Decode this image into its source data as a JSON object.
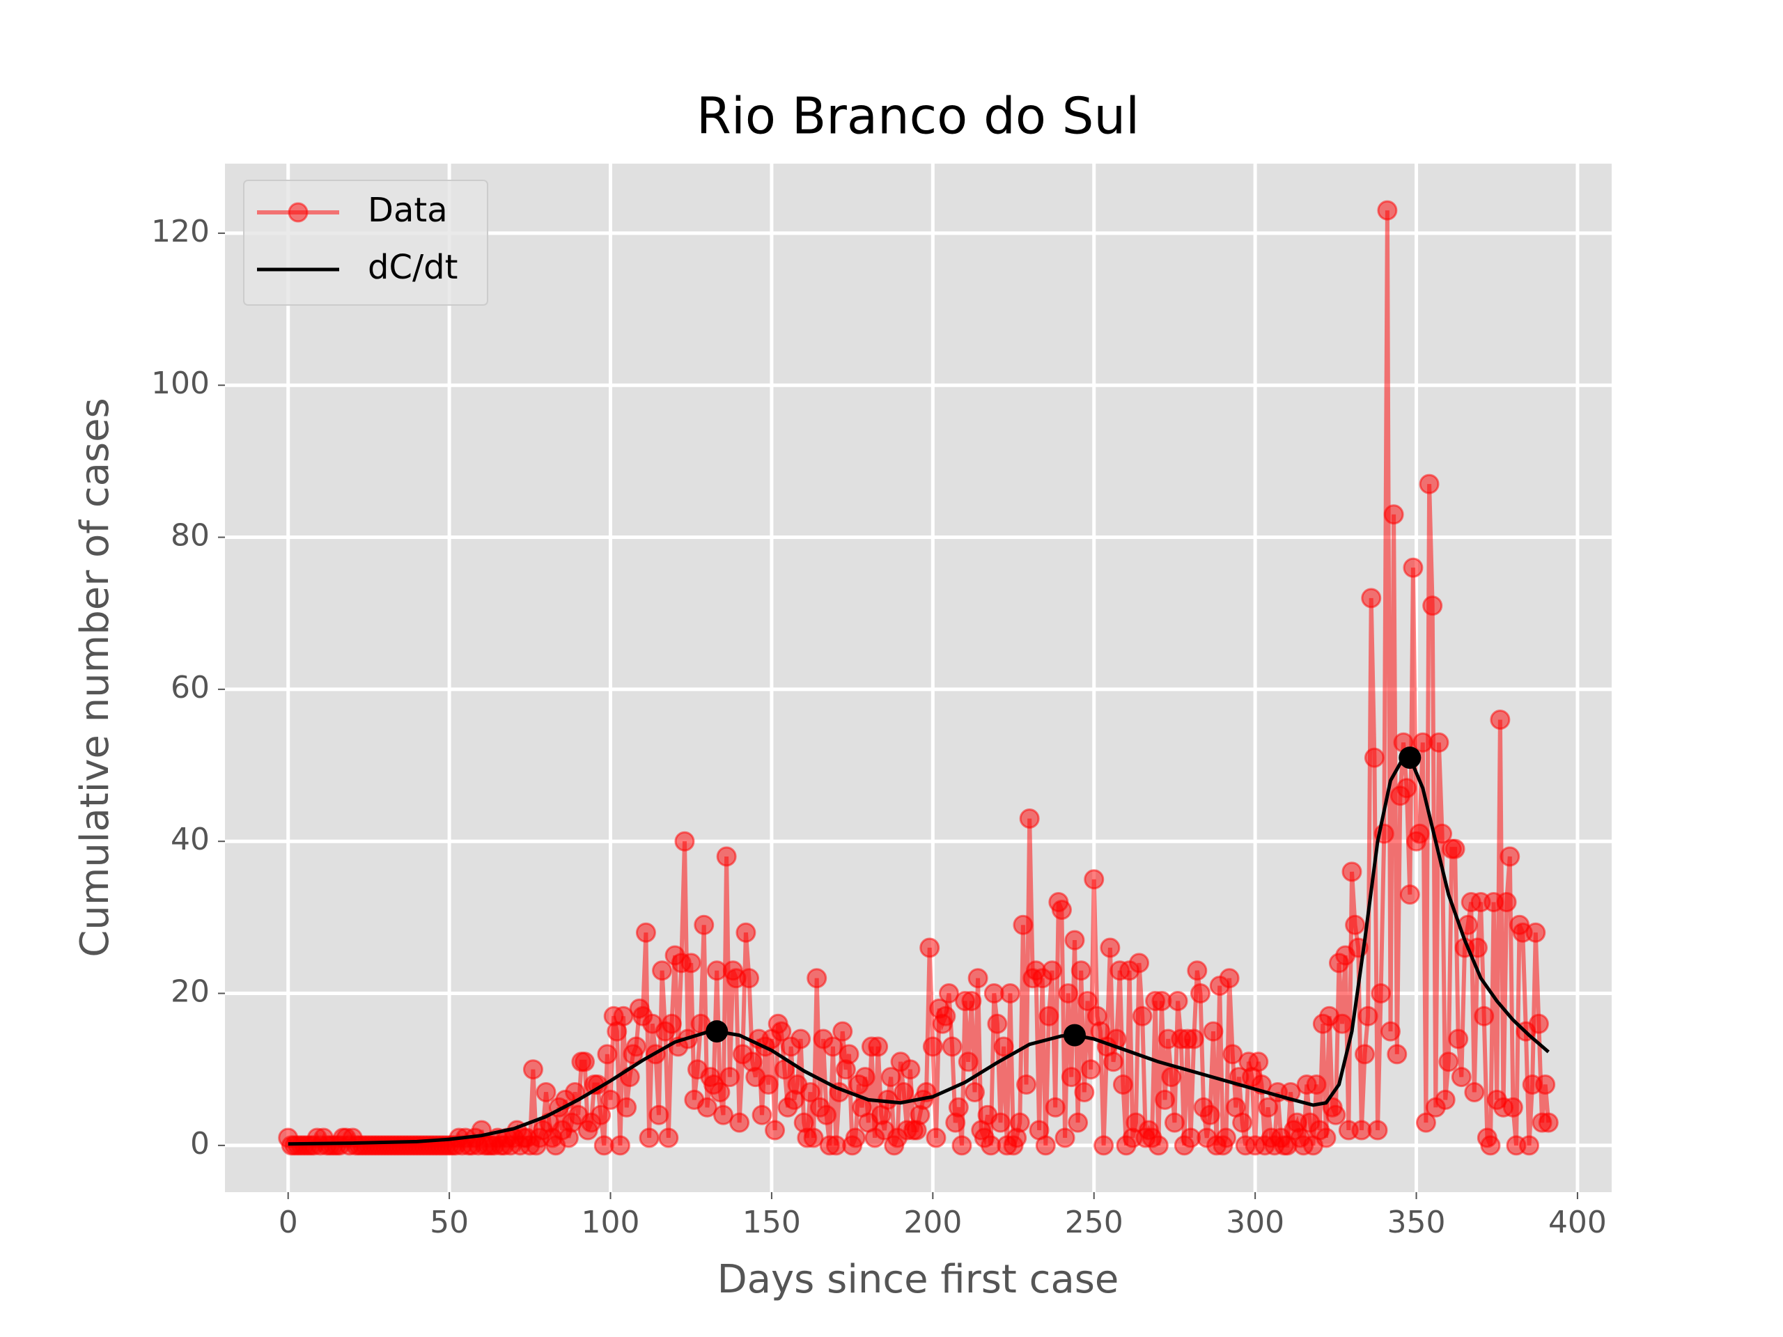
{
  "chart_data": {
    "type": "line",
    "title": "Rio Branco do Sul",
    "xlabel": "Days since first case",
    "ylabel": "Cumulative number of cases",
    "xlim": [
      -19.6,
      410.6
    ],
    "ylim": [
      -6.15,
      129.15
    ],
    "xticks": [
      0,
      50,
      100,
      150,
      200,
      250,
      300,
      350,
      400
    ],
    "yticks": [
      0,
      20,
      40,
      60,
      80,
      100,
      120
    ],
    "grid": true,
    "legend": "upper left",
    "series": [
      {
        "name": "Data",
        "color": "#ff0000",
        "x": [
          0,
          1,
          2,
          3,
          4,
          5,
          6,
          7,
          8,
          9,
          10,
          11,
          12,
          13,
          14,
          15,
          16,
          17,
          18,
          19,
          20,
          21,
          22,
          23,
          24,
          25,
          26,
          27,
          28,
          29,
          30,
          31,
          32,
          33,
          34,
          35,
          36,
          37,
          38,
          39,
          40,
          41,
          42,
          43,
          44,
          45,
          46,
          47,
          48,
          49,
          50,
          51,
          52,
          53,
          54,
          55,
          56,
          57,
          58,
          59,
          60,
          61,
          62,
          63,
          64,
          65,
          66,
          67,
          68,
          69,
          70,
          71,
          72,
          73,
          74,
          75,
          76,
          77,
          78,
          79,
          80,
          81,
          82,
          83,
          84,
          85,
          86,
          87,
          88,
          89,
          90,
          91,
          92,
          93,
          94,
          95,
          96,
          97,
          98,
          99,
          100,
          101,
          102,
          103,
          104,
          105,
          106,
          107,
          108,
          109,
          110,
          111,
          112,
          113,
          114,
          115,
          116,
          117,
          118,
          119,
          120,
          121,
          122,
          123,
          124,
          125,
          126,
          127,
          128,
          129,
          130,
          131,
          132,
          133,
          134,
          135,
          136,
          137,
          138,
          139,
          140,
          141,
          142,
          143,
          144,
          145,
          146,
          147,
          148,
          149,
          150,
          151,
          152,
          153,
          154,
          155,
          156,
          157,
          158,
          159,
          160,
          161,
          162,
          163,
          164,
          165,
          166,
          167,
          168,
          169,
          170,
          171,
          172,
          173,
          174,
          175,
          176,
          177,
          178,
          179,
          180,
          181,
          182,
          183,
          184,
          185,
          186,
          187,
          188,
          189,
          190,
          191,
          192,
          193,
          194,
          195,
          196,
          197,
          198,
          199,
          200,
          201,
          202,
          203,
          204,
          205,
          206,
          207,
          208,
          209,
          210,
          211,
          212,
          213,
          214,
          215,
          216,
          217,
          218,
          219,
          220,
          221,
          222,
          223,
          224,
          225,
          226,
          227,
          228,
          229,
          230,
          231,
          232,
          233,
          234,
          235,
          236,
          237,
          238,
          239,
          240,
          241,
          242,
          243,
          244,
          245,
          246,
          247,
          248,
          249,
          250,
          251,
          252,
          253,
          254,
          255,
          256,
          257,
          258,
          259,
          260,
          261,
          262,
          263,
          264,
          265,
          266,
          267,
          268,
          269,
          270,
          271,
          272,
          273,
          274,
          275,
          276,
          277,
          278,
          279,
          280,
          281,
          282,
          283,
          284,
          285,
          286,
          287,
          288,
          289,
          290,
          291,
          292,
          293,
          294,
          295,
          296,
          297,
          298,
          299,
          300,
          301,
          302,
          303,
          304,
          305,
          306,
          307,
          308,
          309,
          310,
          311,
          312,
          313,
          314,
          315,
          316,
          317,
          318,
          319,
          320,
          321,
          322,
          323,
          324,
          325,
          326,
          327,
          328,
          329,
          330,
          331,
          332,
          333,
          334,
          335,
          336,
          337,
          338,
          339,
          340,
          341,
          342,
          343,
          344,
          345,
          346,
          347,
          348,
          349,
          350,
          351,
          352,
          353,
          354,
          355,
          356,
          357,
          358,
          359,
          360,
          361,
          362,
          363,
          364,
          365,
          366,
          367,
          368,
          369,
          370,
          371,
          372,
          373,
          374,
          375,
          376,
          377,
          378,
          379,
          380,
          381,
          382,
          383,
          384,
          385,
          386,
          387,
          388,
          389,
          390,
          391
        ],
        "values": [
          1,
          0,
          0,
          0,
          0,
          0,
          0,
          0,
          0,
          1,
          0,
          1,
          0,
          0,
          0,
          0,
          0,
          1,
          1,
          0,
          1,
          0,
          0,
          0,
          0,
          0,
          0,
          0,
          0,
          0,
          0,
          0,
          0,
          0,
          0,
          0,
          0,
          0,
          0,
          0,
          0,
          0,
          0,
          0,
          0,
          0,
          0,
          0,
          0,
          0,
          0,
          0,
          0,
          1,
          0,
          1,
          0,
          0,
          1,
          0,
          2,
          0,
          0,
          0,
          0,
          1,
          0,
          0,
          1,
          0,
          1,
          2,
          0,
          1,
          1,
          0,
          10,
          0,
          1,
          2,
          7,
          3,
          1,
          0,
          5,
          2,
          6,
          1,
          3,
          7,
          4,
          11,
          11,
          2,
          3,
          8,
          8,
          4,
          0,
          12,
          6,
          17,
          15,
          0,
          17,
          5,
          9,
          12,
          13,
          18,
          17,
          28,
          1,
          16,
          12,
          4,
          23,
          15,
          1,
          16,
          25,
          13,
          24,
          40,
          14,
          24,
          6,
          10,
          16,
          29,
          5,
          9,
          8,
          23,
          7,
          4,
          38,
          9,
          23,
          22,
          3,
          12,
          28,
          22,
          11,
          9,
          14,
          4,
          13,
          8,
          14,
          2,
          16,
          15,
          10,
          5,
          13,
          6,
          8,
          14,
          3,
          1,
          7,
          1,
          22,
          5,
          14,
          4,
          0,
          13,
          0,
          7,
          15,
          10,
          12,
          0,
          1,
          8,
          5,
          9,
          3,
          13,
          1,
          13,
          4,
          2,
          6,
          9,
          0,
          1,
          11,
          7,
          2,
          10,
          2,
          2,
          4,
          6,
          7,
          26,
          13,
          1,
          18,
          16,
          17,
          20,
          13,
          3,
          5,
          0,
          19,
          11,
          19,
          7,
          22,
          2,
          1,
          4,
          0,
          20,
          16,
          3,
          13,
          0,
          20,
          0,
          1,
          3,
          29,
          8,
          43,
          22,
          23,
          2,
          22,
          0,
          17,
          23,
          5,
          32,
          31,
          1,
          20,
          9,
          27,
          3,
          23,
          7,
          19,
          10,
          35,
          17,
          15,
          0,
          13,
          26,
          11,
          14,
          23,
          8,
          0,
          23,
          1,
          3,
          24,
          17,
          1,
          2,
          1,
          19,
          0,
          19,
          6,
          14,
          9,
          3,
          19,
          14,
          0,
          14,
          1,
          14,
          23,
          20,
          5,
          1,
          4,
          15,
          0,
          21,
          0,
          1,
          22,
          12,
          5,
          9,
          3,
          0,
          11,
          9,
          0,
          11,
          8,
          0,
          5,
          1,
          0,
          7,
          1,
          0,
          0,
          7,
          2,
          3,
          1,
          0,
          8,
          3,
          0,
          8,
          2,
          16,
          1,
          17,
          5,
          4,
          24,
          16,
          25,
          2,
          36,
          29,
          26,
          2,
          12,
          17,
          72,
          51,
          2,
          20,
          41,
          123,
          15,
          83,
          12,
          46,
          53,
          47,
          33,
          76,
          40,
          41,
          53,
          3,
          87,
          71,
          5,
          53,
          41,
          6,
          11,
          39,
          39,
          14,
          9,
          26,
          29,
          32,
          7,
          26,
          32,
          17,
          1,
          0,
          32,
          6,
          56,
          5,
          32,
          38,
          5,
          0,
          29,
          28,
          15,
          0,
          8,
          28,
          16,
          3,
          8,
          3
        ]
      },
      {
        "name": "dC/dt",
        "color": "#000000",
        "x": [
          0,
          20,
          40,
          50,
          60,
          70,
          80,
          90,
          100,
          110,
          120,
          130,
          133,
          140,
          150,
          160,
          170,
          180,
          190,
          200,
          210,
          220,
          230,
          240,
          244,
          250,
          260,
          270,
          280,
          290,
          300,
          310,
          318,
          322,
          326,
          330,
          334,
          338,
          342,
          346,
          348,
          352,
          356,
          360,
          365,
          370,
          375,
          380,
          385,
          391
        ],
        "values": [
          0.2,
          0.3,
          0.5,
          0.8,
          1.3,
          2.2,
          3.8,
          6,
          8.5,
          11.2,
          13.6,
          14.9,
          15,
          14.5,
          12.5,
          9.8,
          7.6,
          6,
          5.6,
          6.4,
          8.3,
          10.9,
          13.3,
          14.4,
          14.5,
          14,
          12.5,
          11,
          9.8,
          8.6,
          7.4,
          6.2,
          5.3,
          5.6,
          8,
          15,
          27,
          40,
          48,
          51,
          51,
          47,
          40,
          33,
          27,
          22,
          19,
          16.5,
          14.5,
          12.3
        ]
      }
    ],
    "peaks": {
      "color": "#000000",
      "x": [
        133,
        244,
        348
      ],
      "values": [
        15,
        14.5,
        51
      ]
    }
  }
}
